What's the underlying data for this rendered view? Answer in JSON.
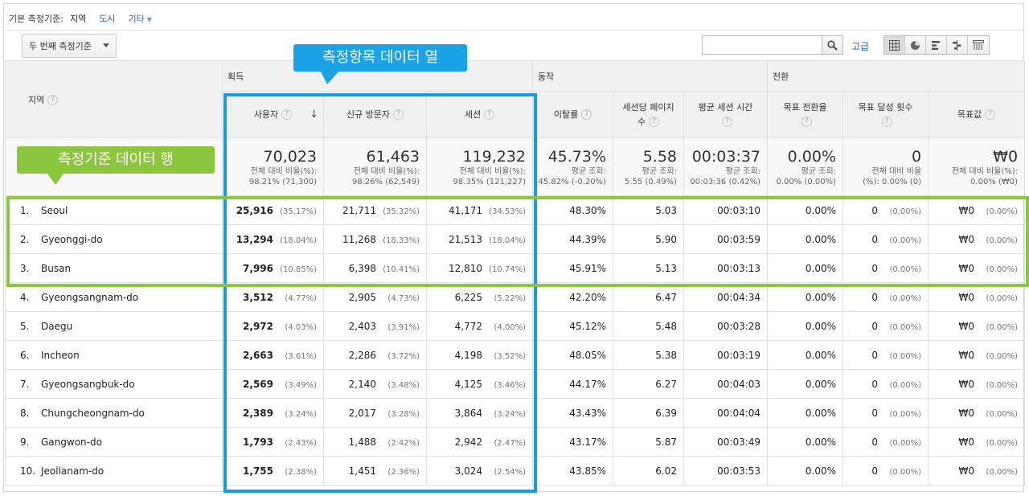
{
  "dimension_bar": {
    "label": "기본 측정기준:",
    "active": "지역",
    "link_city": "도시",
    "link_other": "기타"
  },
  "toolbar": {
    "secondary_dimension": "두 번째 측정기준",
    "advanced": "고급",
    "search_placeholder": ""
  },
  "groups": {
    "acquisition": "획득",
    "behavior": "동작",
    "conversion": "전환"
  },
  "columns": {
    "region": "지역",
    "users": "사용자",
    "new_users": "신규 방문자",
    "sessions": "세션",
    "bounce": "이탈률",
    "pages": "세션당 페이지",
    "pages2": "수",
    "duration": "평균 세션 시간",
    "goal_rate": "목표 전환율",
    "goal_count": "목표 달성 횟수",
    "goal_value": "목표값"
  },
  "totals": {
    "users": {
      "big": "70,023",
      "sub1": "전체 대비 비율(%):",
      "sub2": "98.21% (71,300)"
    },
    "new_users": {
      "big": "61,463",
      "sub1": "전체 대비 비율(%):",
      "sub2": "98.26% (62,549)"
    },
    "sessions": {
      "big": "119,232",
      "sub1": "전체 대비 비율(%):",
      "sub2": "98.35% (121,227)"
    },
    "bounce": {
      "big": "45.73%",
      "sub1": "평균 조회:",
      "sub2": "45.82% (-0.20%)"
    },
    "pages": {
      "big": "5.58",
      "sub1": "평균 조회:",
      "sub2": "5.55 (0.49%)"
    },
    "duration": {
      "big": "00:03:37",
      "sub1": "평균 조회:",
      "sub2": "00:03:36 (0.42%)"
    },
    "goal_rate": {
      "big": "0.00%",
      "sub1": "평균 조회:",
      "sub2": "0.00% (0.00%)"
    },
    "goal_count": {
      "big": "0",
      "sub1": "전체 대비 비율",
      "sub2": "(%): 0.00% (0)"
    },
    "goal_value": {
      "big": "₩0",
      "sub1": "전체 대비 비율(%):",
      "sub2": "0.00% (₩0)"
    }
  },
  "rows": [
    {
      "idx": "1.",
      "name": "Seoul",
      "users": "25,916",
      "users_p": "(35.17%)",
      "new": "21,711",
      "new_p": "(35.32%)",
      "sess": "41,171",
      "sess_p": "(34.53%)",
      "bounce": "48.30%",
      "pages": "5.03",
      "dur": "00:03:10",
      "rate": "0.00%",
      "cnt": "0",
      "cnt_p": "(0.00%)",
      "val": "₩0",
      "val_p": "(0.00%)"
    },
    {
      "idx": "2.",
      "name": "Gyeonggi-do",
      "users": "13,294",
      "users_p": "(18.04%)",
      "new": "11,268",
      "new_p": "(18.33%)",
      "sess": "21,513",
      "sess_p": "(18.04%)",
      "bounce": "44.39%",
      "pages": "5.90",
      "dur": "00:03:59",
      "rate": "0.00%",
      "cnt": "0",
      "cnt_p": "(0.00%)",
      "val": "₩0",
      "val_p": "(0.00%)"
    },
    {
      "idx": "3.",
      "name": "Busan",
      "users": "7,996",
      "users_p": "(10.85%)",
      "new": "6,398",
      "new_p": "(10.41%)",
      "sess": "12,810",
      "sess_p": "(10.74%)",
      "bounce": "45.91%",
      "pages": "5.13",
      "dur": "00:03:13",
      "rate": "0.00%",
      "cnt": "0",
      "cnt_p": "(0.00%)",
      "val": "₩0",
      "val_p": "(0.00%)"
    },
    {
      "idx": "4.",
      "name": "Gyeongsangnam-do",
      "users": "3,512",
      "users_p": "(4.77%)",
      "new": "2,905",
      "new_p": "(4.73%)",
      "sess": "6,225",
      "sess_p": "(5.22%)",
      "bounce": "42.20%",
      "pages": "6.47",
      "dur": "00:04:34",
      "rate": "0.00%",
      "cnt": "0",
      "cnt_p": "(0.00%)",
      "val": "₩0",
      "val_p": "(0.00%)"
    },
    {
      "idx": "5.",
      "name": "Daegu",
      "users": "2,972",
      "users_p": "(4.03%)",
      "new": "2,403",
      "new_p": "(3.91%)",
      "sess": "4,772",
      "sess_p": "(4.00%)",
      "bounce": "45.12%",
      "pages": "5.48",
      "dur": "00:03:28",
      "rate": "0.00%",
      "cnt": "0",
      "cnt_p": "(0.00%)",
      "val": "₩0",
      "val_p": "(0.00%)"
    },
    {
      "idx": "6.",
      "name": "Incheon",
      "users": "2,663",
      "users_p": "(3.61%)",
      "new": "2,286",
      "new_p": "(3.72%)",
      "sess": "4,198",
      "sess_p": "(3.52%)",
      "bounce": "48.05%",
      "pages": "5.38",
      "dur": "00:03:19",
      "rate": "0.00%",
      "cnt": "0",
      "cnt_p": "(0.00%)",
      "val": "₩0",
      "val_p": "(0.00%)"
    },
    {
      "idx": "7.",
      "name": "Gyeongsangbuk-do",
      "users": "2,569",
      "users_p": "(3.49%)",
      "new": "2,140",
      "new_p": "(3.48%)",
      "sess": "4,125",
      "sess_p": "(3.46%)",
      "bounce": "44.17%",
      "pages": "6.27",
      "dur": "00:04:03",
      "rate": "0.00%",
      "cnt": "0",
      "cnt_p": "(0.00%)",
      "val": "₩0",
      "val_p": "(0.00%)"
    },
    {
      "idx": "8.",
      "name": "Chungcheongnam-do",
      "users": "2,389",
      "users_p": "(3.24%)",
      "new": "2,017",
      "new_p": "(3.28%)",
      "sess": "3,864",
      "sess_p": "(3.24%)",
      "bounce": "43.43%",
      "pages": "6.39",
      "dur": "00:04:04",
      "rate": "0.00%",
      "cnt": "0",
      "cnt_p": "(0.00%)",
      "val": "₩0",
      "val_p": "(0.00%)"
    },
    {
      "idx": "9.",
      "name": "Gangwon-do",
      "users": "1,793",
      "users_p": "(2.43%)",
      "new": "1,488",
      "new_p": "(2.42%)",
      "sess": "2,942",
      "sess_p": "(2.47%)",
      "bounce": "43.17%",
      "pages": "5.87",
      "dur": "00:03:49",
      "rate": "0.00%",
      "cnt": "0",
      "cnt_p": "(0.00%)",
      "val": "₩0",
      "val_p": "(0.00%)"
    },
    {
      "idx": "10.",
      "name": "Jeollanam-do",
      "users": "1,755",
      "users_p": "(2.38%)",
      "new": "1,451",
      "new_p": "(2.36%)",
      "sess": "3,024",
      "sess_p": "(2.54%)",
      "bounce": "43.85%",
      "pages": "6.02",
      "dur": "00:03:53",
      "rate": "0.00%",
      "cnt": "0",
      "cnt_p": "(0.00%)",
      "val": "₩0",
      "val_p": "(0.00%)"
    }
  ],
  "annotations": {
    "metric_column": "측정항목 데이터 열",
    "dimension_row": "측정기준 데이터 행"
  },
  "colors": {
    "blue_highlight": "#1a9be0",
    "green_highlight": "#8cc63e",
    "link": "#2a64b7"
  }
}
